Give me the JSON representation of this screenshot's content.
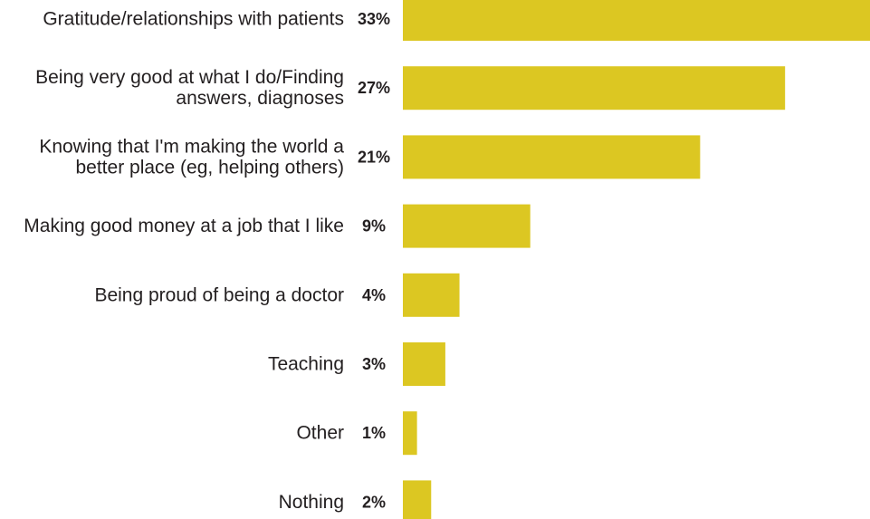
{
  "chart_data": {
    "type": "bar",
    "orientation": "horizontal",
    "categories": [
      [
        "Gratitude/relationships with patients"
      ],
      [
        "Being very good at what I do/Finding",
        "answers, diagnoses"
      ],
      [
        "Knowing that I'm making the world a",
        "better place (eg, helping others)"
      ],
      [
        "Making good money at a job that I like"
      ],
      [
        "Being proud of being a doctor"
      ],
      [
        "Teaching"
      ],
      [
        "Other"
      ],
      [
        "Nothing"
      ]
    ],
    "values": [
      33,
      27,
      21,
      9,
      4,
      3,
      1,
      2
    ],
    "value_labels": [
      "33%",
      "27%",
      "21%",
      "9%",
      "4%",
      "3%",
      "1%",
      "2%"
    ],
    "bar_color": "#dcc722",
    "xlim": [
      0,
      33
    ],
    "grid": false,
    "legend": "none"
  }
}
